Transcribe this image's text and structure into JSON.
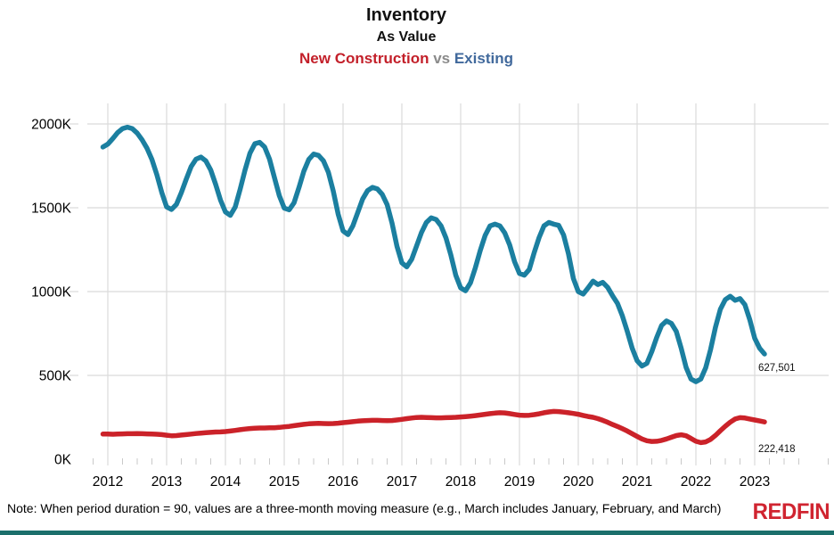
{
  "header": {
    "title": "Inventory",
    "subtitle": "As Value",
    "legend_left": "New Construction",
    "legend_vs": " vs ",
    "legend_right": "Existing"
  },
  "footer": {
    "note": "Note: When period duration = 90, values are a three-month moving measure (e.g., March includes January, February, and March)",
    "logo": "REDFIN"
  },
  "colors": {
    "legend_left": "#c3202a",
    "legend_vs": "#8a8a8a",
    "legend_right": "#41699c",
    "line_existing": "#1b7fa0",
    "line_new_construction": "#cb2229",
    "gridline": "#dadada",
    "minor_tick": "#c9c9c9",
    "axis_text": "#000000",
    "end_label_text": "#111111",
    "logo_red": "#d02430",
    "bottom_bar": "#1b6f6b"
  },
  "chart_data": {
    "type": "line",
    "title": "Inventory",
    "subtitle": "As Value",
    "comparison": "New Construction vs Existing",
    "units": "thousands of homes (K)",
    "x_start_year": 2011.9167,
    "x_step_years": 0.0833333,
    "x_ticks": [
      2012,
      2013,
      2014,
      2015,
      2016,
      2017,
      2018,
      2019,
      2020,
      2021,
      2022,
      2023
    ],
    "y_ticks": [
      {
        "label": "0K",
        "value": 0
      },
      {
        "label": "500K",
        "value": 500
      },
      {
        "label": "1000K",
        "value": 1000
      },
      {
        "label": "1500K",
        "value": 1500
      },
      {
        "label": "2000K",
        "value": 2000
      }
    ],
    "ylim": [
      0,
      2130
    ],
    "grid": true,
    "legend_position": "title",
    "series": [
      {
        "name": "Existing",
        "color": "#1b7fa0",
        "end_label": "627,501",
        "end_value": 627501,
        "end_label_offset": [
          -7,
          19
        ],
        "values": [
          1862,
          1880,
          1912,
          1948,
          1972,
          1981,
          1972,
          1945,
          1905,
          1855,
          1788,
          1698,
          1592,
          1505,
          1490,
          1520,
          1590,
          1670,
          1745,
          1790,
          1802,
          1780,
          1725,
          1640,
          1545,
          1475,
          1455,
          1505,
          1610,
          1725,
          1825,
          1882,
          1890,
          1862,
          1790,
          1680,
          1572,
          1498,
          1488,
          1530,
          1620,
          1718,
          1788,
          1820,
          1812,
          1780,
          1712,
          1600,
          1462,
          1362,
          1340,
          1392,
          1472,
          1552,
          1602,
          1622,
          1612,
          1580,
          1518,
          1408,
          1270,
          1172,
          1148,
          1192,
          1272,
          1352,
          1412,
          1440,
          1430,
          1392,
          1320,
          1218,
          1098,
          1022,
          1005,
          1052,
          1142,
          1245,
          1335,
          1392,
          1402,
          1392,
          1350,
          1278,
          1178,
          1108,
          1098,
          1132,
          1232,
          1322,
          1392,
          1412,
          1402,
          1395,
          1338,
          1225,
          1078,
          1000,
          985,
          1022,
          1062,
          1042,
          1055,
          1025,
          975,
          930,
          855,
          762,
          662,
          588,
          556,
          572,
          642,
          726,
          798,
          825,
          810,
          762,
          662,
          548,
          478,
          462,
          478,
          545,
          655,
          788,
          895,
          952,
          972,
          948,
          958,
          922,
          832,
          722,
          662,
          627.5
        ]
      },
      {
        "name": "New Construction",
        "color": "#cb2229",
        "end_label": "222,418",
        "end_value": 222418,
        "end_label_offset": [
          -7,
          34
        ],
        "values": [
          150,
          150,
          149,
          150,
          151,
          152,
          152,
          153,
          152,
          151,
          150,
          149,
          147,
          143,
          140,
          141,
          144,
          147,
          150,
          153,
          156,
          158,
          160,
          162,
          163,
          165,
          168,
          172,
          176,
          180,
          183,
          185,
          186,
          186,
          187,
          188,
          190,
          193,
          196,
          200,
          204,
          208,
          211,
          213,
          214,
          213,
          212,
          213,
          215,
          218,
          221,
          224,
          227,
          229,
          231,
          232,
          232,
          231,
          230,
          231,
          234,
          238,
          242,
          246,
          249,
          250,
          249,
          248,
          247,
          247,
          248,
          249,
          250,
          252,
          254,
          257,
          260,
          264,
          268,
          272,
          275,
          277,
          276,
          272,
          267,
          263,
          261,
          262,
          266,
          271,
          277,
          282,
          285,
          284,
          281,
          277,
          273,
          268,
          261,
          255,
          250,
          242,
          232,
          220,
          207,
          195,
          182,
          168,
          152,
          136,
          121,
          110,
          106,
          107,
          112,
          121,
          131,
          141,
          146,
          140,
          124,
          107,
          99,
          103,
          118,
          142,
          170,
          197,
          221,
          240,
          248,
          246,
          240,
          234,
          228,
          222.4
        ]
      }
    ]
  }
}
